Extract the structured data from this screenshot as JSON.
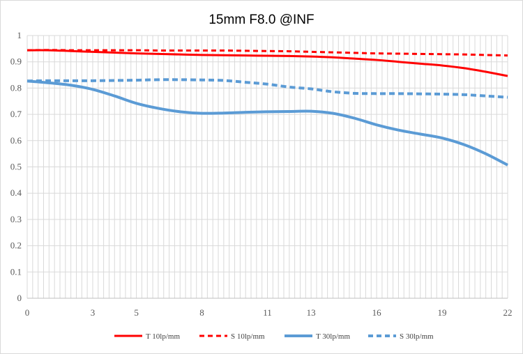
{
  "chart_data": {
    "type": "line",
    "title": "15mm F8.0 @INF",
    "xlabel": "",
    "ylabel": "",
    "xlim": [
      0,
      22
    ],
    "ylim": [
      0,
      1
    ],
    "x_ticks": [
      0,
      3,
      5,
      8,
      11,
      13,
      16,
      19,
      22
    ],
    "y_ticks": [
      0,
      0.1,
      0.2,
      0.3,
      0.4,
      0.5,
      0.6,
      0.7,
      0.8,
      0.9,
      1
    ],
    "y_tick_labels": [
      "0",
      "0.1",
      "0.2",
      "0.3",
      "0.4",
      "0.5",
      "0.6",
      "0.7",
      "0.8",
      "0.9",
      "1"
    ],
    "grid": true,
    "legend_position": "bottom",
    "series": [
      {
        "name": "T 10lp/mm",
        "color": "#ff0000",
        "dash": "solid",
        "points": [
          [
            0,
            0.944
          ],
          [
            1,
            0.944
          ],
          [
            2,
            0.941
          ],
          [
            3,
            0.938
          ],
          [
            4,
            0.935
          ],
          [
            5,
            0.932
          ],
          [
            6,
            0.93
          ],
          [
            7,
            0.928
          ],
          [
            8,
            0.926
          ],
          [
            9,
            0.925
          ],
          [
            10,
            0.924
          ],
          [
            11,
            0.923
          ],
          [
            12,
            0.922
          ],
          [
            13,
            0.92
          ],
          [
            14,
            0.917
          ],
          [
            15,
            0.912
          ],
          [
            16,
            0.907
          ],
          [
            17,
            0.9
          ],
          [
            18,
            0.893
          ],
          [
            19,
            0.886
          ],
          [
            20,
            0.876
          ],
          [
            21,
            0.862
          ],
          [
            22,
            0.846
          ]
        ]
      },
      {
        "name": "S 10lp/mm",
        "color": "#ff0000",
        "dash": "dashed",
        "points": [
          [
            0,
            0.944
          ],
          [
            1,
            0.945
          ],
          [
            2,
            0.944
          ],
          [
            3,
            0.944
          ],
          [
            4,
            0.944
          ],
          [
            5,
            0.944
          ],
          [
            6,
            0.943
          ],
          [
            7,
            0.943
          ],
          [
            8,
            0.943
          ],
          [
            9,
            0.943
          ],
          [
            10,
            0.942
          ],
          [
            11,
            0.941
          ],
          [
            12,
            0.94
          ],
          [
            13,
            0.938
          ],
          [
            14,
            0.936
          ],
          [
            15,
            0.934
          ],
          [
            16,
            0.932
          ],
          [
            17,
            0.931
          ],
          [
            18,
            0.93
          ],
          [
            19,
            0.929
          ],
          [
            20,
            0.928
          ],
          [
            21,
            0.926
          ],
          [
            22,
            0.924
          ]
        ]
      },
      {
        "name": "T 30lp/mm",
        "color": "#5b9bd5",
        "dash": "solid",
        "points": [
          [
            0,
            0.827
          ],
          [
            1,
            0.82
          ],
          [
            2,
            0.811
          ],
          [
            3,
            0.795
          ],
          [
            4,
            0.77
          ],
          [
            5,
            0.742
          ],
          [
            6,
            0.723
          ],
          [
            7,
            0.71
          ],
          [
            8,
            0.704
          ],
          [
            9,
            0.705
          ],
          [
            10,
            0.708
          ],
          [
            11,
            0.71
          ],
          [
            12,
            0.711
          ],
          [
            13,
            0.712
          ],
          [
            14,
            0.704
          ],
          [
            15,
            0.685
          ],
          [
            16,
            0.66
          ],
          [
            17,
            0.64
          ],
          [
            18,
            0.625
          ],
          [
            19,
            0.61
          ],
          [
            20,
            0.585
          ],
          [
            21,
            0.55
          ],
          [
            22,
            0.507
          ]
        ]
      },
      {
        "name": "S 30lp/mm",
        "color": "#5b9bd5",
        "dash": "dashed",
        "points": [
          [
            0,
            0.827
          ],
          [
            1,
            0.828
          ],
          [
            2,
            0.828
          ],
          [
            3,
            0.828
          ],
          [
            4,
            0.829
          ],
          [
            5,
            0.83
          ],
          [
            6,
            0.832
          ],
          [
            7,
            0.832
          ],
          [
            8,
            0.831
          ],
          [
            9,
            0.829
          ],
          [
            10,
            0.822
          ],
          [
            11,
            0.815
          ],
          [
            12,
            0.804
          ],
          [
            13,
            0.797
          ],
          [
            14,
            0.786
          ],
          [
            15,
            0.78
          ],
          [
            16,
            0.779
          ],
          [
            17,
            0.779
          ],
          [
            18,
            0.778
          ],
          [
            19,
            0.777
          ],
          [
            20,
            0.775
          ],
          [
            21,
            0.77
          ],
          [
            22,
            0.765
          ]
        ]
      }
    ]
  }
}
